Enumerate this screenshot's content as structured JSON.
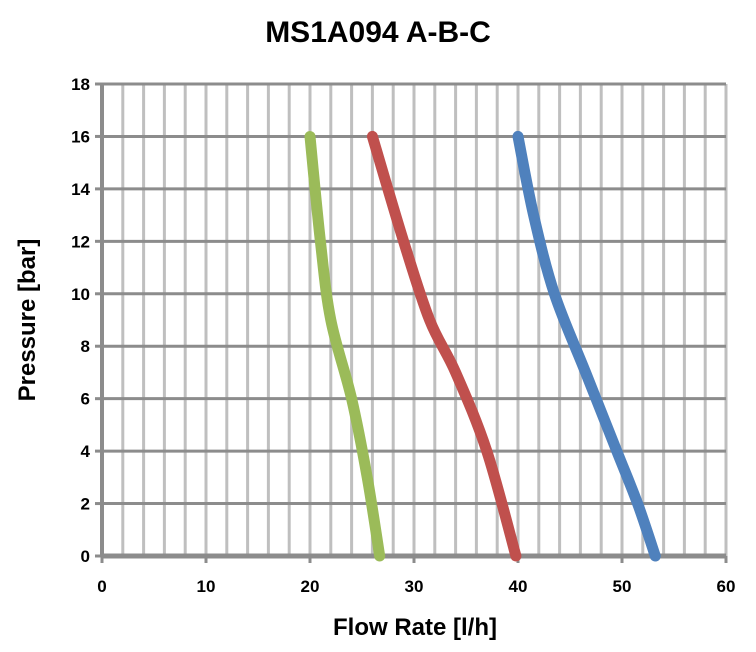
{
  "chart_data": {
    "type": "line",
    "title": "MS1A094 A-B-C",
    "xlabel": "Flow Rate [l/h]",
    "ylabel": "Pressure [bar]",
    "xlim": [
      0,
      60
    ],
    "ylim": [
      0,
      18
    ],
    "xticks": [
      0,
      10,
      20,
      30,
      40,
      50,
      60
    ],
    "yticks": [
      0,
      2,
      4,
      6,
      8,
      10,
      12,
      14,
      16,
      18
    ],
    "grid": true,
    "legend": "none",
    "series": [
      {
        "color": "#4f81bd",
        "points": [
          [
            40,
            16
          ],
          [
            41.5,
            13
          ],
          [
            43.5,
            10
          ],
          [
            46.5,
            7
          ],
          [
            49.5,
            4
          ],
          [
            51.5,
            2
          ],
          [
            53.2,
            0
          ]
        ]
      },
      {
        "color": "#c0504d",
        "points": [
          [
            26,
            16
          ],
          [
            29,
            12
          ],
          [
            31.5,
            9
          ],
          [
            34,
            7
          ],
          [
            37,
            4
          ],
          [
            39.8,
            0
          ]
        ]
      },
      {
        "color": "#9bbb59",
        "points": [
          [
            20,
            16
          ],
          [
            21,
            12
          ],
          [
            22,
            9
          ],
          [
            24,
            6
          ],
          [
            25.5,
            3
          ],
          [
            26.7,
            0
          ]
        ]
      }
    ]
  }
}
